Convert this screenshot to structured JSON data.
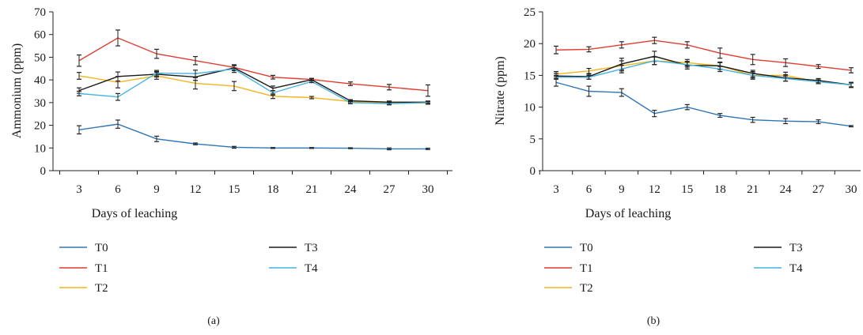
{
  "colors": {
    "T0": "#2e75b6",
    "T1": "#e03c31",
    "T2": "#f2b51c",
    "T3": "#1a1a1a",
    "T4": "#45b4e0",
    "axis": "#222222"
  },
  "chart_data": [
    {
      "type": "line",
      "panel_label": "(a)",
      "title": "",
      "xlabel": "Days of leaching",
      "ylabel": "Ammonium (ppm)",
      "x": [
        3,
        6,
        9,
        12,
        15,
        18,
        21,
        24,
        27,
        30
      ],
      "x_ticks": [
        "3",
        "6",
        "9",
        "12",
        "15",
        "18",
        "21",
        "24",
        "27",
        "30"
      ],
      "ylim": [
        0,
        70
      ],
      "y_ticks": [
        "0",
        "10",
        "20",
        "30",
        "40",
        "50",
        "60",
        "70"
      ],
      "grid": false,
      "legend_position": "bottom",
      "series": [
        {
          "name": "T0",
          "values": [
            18,
            20.5,
            14,
            11.8,
            10.3,
            10,
            10,
            9.9,
            9.6,
            9.6
          ],
          "err": [
            1.8,
            1.8,
            1.2,
            0.4,
            0.4,
            0.2,
            0.2,
            0.2,
            0.4,
            0.3
          ]
        },
        {
          "name": "T1",
          "values": [
            48.5,
            58.5,
            51.5,
            48.5,
            45.5,
            41.2,
            40.2,
            38.3,
            36.8,
            35.3
          ],
          "err": [
            2.5,
            3.5,
            2,
            1.8,
            1.2,
            0.8,
            0.5,
            0.8,
            1.2,
            2.5
          ]
        },
        {
          "name": "T2",
          "values": [
            41.8,
            39,
            41.8,
            38.5,
            37.3,
            32.8,
            32.2,
            30.5,
            29.8,
            29.8
          ],
          "err": [
            1.5,
            2.5,
            1.5,
            2.5,
            2,
            1,
            0.5,
            0.5,
            0.5,
            0.5
          ]
        },
        {
          "name": "T3",
          "values": [
            35.3,
            41.5,
            42.5,
            41.3,
            45.3,
            36.3,
            40.1,
            30.8,
            30.2,
            30.2
          ],
          "err": [
            1.2,
            2,
            1.2,
            1.5,
            1.2,
            1,
            0.5,
            0.5,
            0.5,
            0.5
          ]
        },
        {
          "name": "T4",
          "values": [
            34,
            32.5,
            43,
            42.8,
            44.8,
            34.3,
            39.3,
            30,
            29.5,
            30
          ],
          "err": [
            1,
            1.5,
            1.2,
            1.5,
            1.5,
            1,
            0.5,
            0.5,
            0.5,
            0.5
          ]
        }
      ]
    },
    {
      "type": "line",
      "panel_label": "(b)",
      "title": "",
      "xlabel": "Days of leaching",
      "ylabel": "Nitrate (ppm)",
      "x": [
        3,
        6,
        9,
        12,
        15,
        18,
        21,
        24,
        27,
        30
      ],
      "x_ticks": [
        "3",
        "6",
        "9",
        "12",
        "15",
        "18",
        "21",
        "24",
        "27",
        "30"
      ],
      "ylim": [
        0,
        25
      ],
      "y_ticks": [
        "0",
        "5",
        "10",
        "15",
        "20",
        "25"
      ],
      "grid": false,
      "legend_position": "bottom",
      "series": [
        {
          "name": "T0",
          "values": [
            13.9,
            12.5,
            12.3,
            9,
            10,
            8.7,
            8,
            7.8,
            7.7,
            7
          ],
          "err": [
            0.6,
            0.8,
            0.6,
            0.5,
            0.4,
            0.3,
            0.4,
            0.4,
            0.3,
            0.1
          ]
        },
        {
          "name": "T1",
          "values": [
            19,
            19.1,
            19.8,
            20.5,
            19.8,
            18.5,
            17.5,
            17,
            16.4,
            15.8
          ],
          "err": [
            0.6,
            0.4,
            0.5,
            0.5,
            0.5,
            0.8,
            0.8,
            0.6,
            0.3,
            0.4
          ]
        },
        {
          "name": "T2",
          "values": [
            15.2,
            15.7,
            16.5,
            17.3,
            17,
            16.5,
            15,
            15,
            14,
            13.5
          ],
          "err": [
            0.4,
            0.4,
            0.8,
            0.6,
            0.5,
            0.6,
            0.6,
            0.5,
            0.3,
            0.4
          ]
        },
        {
          "name": "T3",
          "values": [
            14.9,
            14.8,
            16.8,
            18,
            16.6,
            16.5,
            15.3,
            14.6,
            14.2,
            13.5
          ],
          "err": [
            0.4,
            0.4,
            0.9,
            0.8,
            0.6,
            0.5,
            0.5,
            0.5,
            0.3,
            0.4
          ]
        },
        {
          "name": "T4",
          "values": [
            14.7,
            14.7,
            16,
            17.3,
            16.7,
            16,
            15,
            14.5,
            14,
            13.5
          ],
          "err": [
            0.3,
            0.3,
            0.6,
            0.6,
            0.4,
            0.4,
            0.4,
            0.4,
            0.3,
            0.3
          ]
        }
      ]
    }
  ]
}
